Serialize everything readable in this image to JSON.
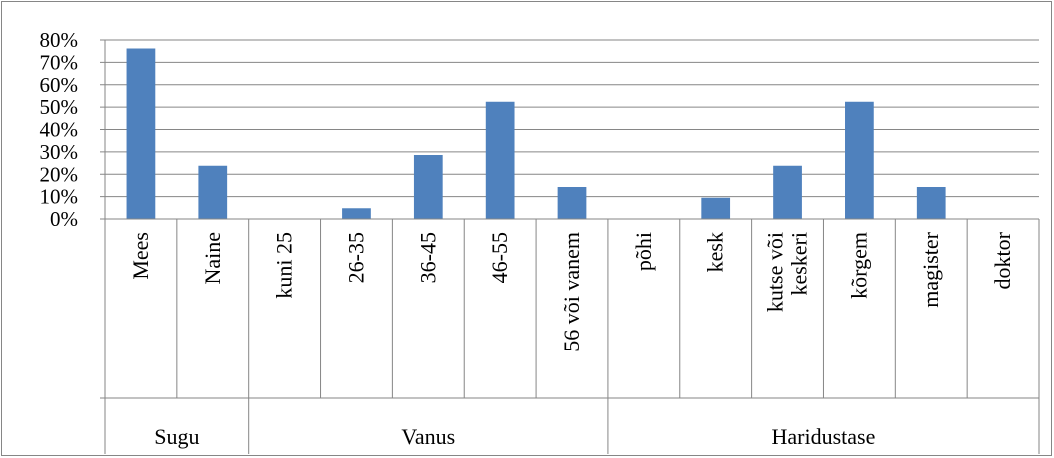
{
  "chart_data": {
    "type": "bar",
    "title": "",
    "xlabel": "",
    "ylabel": "",
    "ylim": [
      0,
      80
    ],
    "yticks": [
      "0%",
      "10%",
      "20%",
      "30%",
      "40%",
      "50%",
      "60%",
      "70%",
      "80%"
    ],
    "grid": true,
    "legend": "none",
    "colors": {
      "bar": "#4f81bd",
      "grid": "#868686",
      "axis": "#868686"
    },
    "groups": [
      {
        "name": "Sugu",
        "categories": [
          "Mees",
          "Naine"
        ],
        "values": [
          76.2,
          23.8
        ]
      },
      {
        "name": "Vanus",
        "categories": [
          "kuni 25",
          "26-35",
          "36-45",
          "46-55",
          "56 või vanem"
        ],
        "values": [
          0,
          4.8,
          28.6,
          52.4,
          14.3
        ]
      },
      {
        "name": "Haridustase",
        "categories": [
          "põhi",
          "kesk",
          "kutse või keskeri",
          "kõrgem",
          "magister",
          "doktor"
        ],
        "values": [
          0,
          9.5,
          23.8,
          52.4,
          14.3,
          0
        ]
      }
    ]
  }
}
